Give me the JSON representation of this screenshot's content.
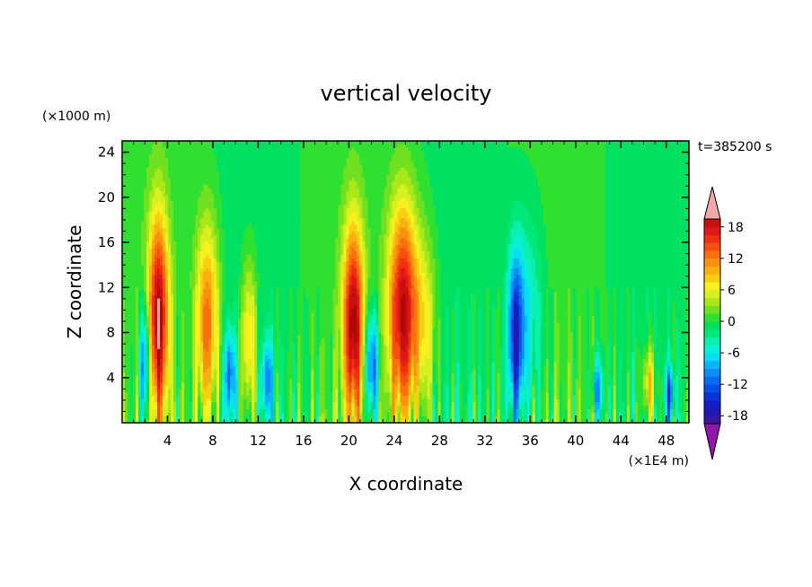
{
  "chart_data": {
    "type": "heatmap",
    "title": "vertical velocity",
    "xlabel": "X coordinate",
    "ylabel": "Z coordinate",
    "x_unit": "(×1E4 m)",
    "y_unit": "(×1000 m)",
    "time_label": "t=385200 s",
    "xlim": [
      0,
      50
    ],
    "ylim": [
      0,
      25
    ],
    "x_ticks": [
      4,
      8,
      12,
      16,
      20,
      24,
      28,
      32,
      36,
      40,
      44,
      48
    ],
    "y_ticks": [
      4,
      8,
      12,
      16,
      20,
      24
    ],
    "colorbar": {
      "levels": [
        -21,
        -19.5,
        -18,
        -16.5,
        -15,
        -13.5,
        -12,
        -10.5,
        -9,
        -7.5,
        -6,
        -4.5,
        -3,
        -1.5,
        0,
        1.5,
        3,
        4.5,
        6,
        7.5,
        9,
        10.5,
        12,
        13.5,
        15,
        16.5,
        18,
        19.5,
        21
      ],
      "tick_labels": [
        -18,
        -12,
        -6,
        0,
        6,
        12,
        18
      ],
      "colors": [
        "#4b0f8c",
        "#3a159f",
        "#2318b0",
        "#1120c4",
        "#0a34d8",
        "#0a4ee8",
        "#0a6af0",
        "#0a8ef5",
        "#0ab4f6",
        "#0adcf2",
        "#0af0d8",
        "#0af0b0",
        "#00e87a",
        "#00e060",
        "#30e030",
        "#70e020",
        "#a8e818",
        "#d8f020",
        "#f8f020",
        "#f8d010",
        "#f8b010",
        "#f89010",
        "#f87010",
        "#f84e10",
        "#f03010",
        "#e01818",
        "#c81010",
        "#b00808"
      ],
      "under_color": "#9018a8",
      "over_color": "#f0a8a8"
    },
    "features": [
      {
        "x": 3.2,
        "peak": 20,
        "top": 22,
        "width": 0.9,
        "sign": 1
      },
      {
        "x": 2.0,
        "peak": -12,
        "top": 13,
        "width": 0.5,
        "sign": -1
      },
      {
        "x": 7.5,
        "peak": 13,
        "top": 21,
        "width": 1.0,
        "sign": 1
      },
      {
        "x": 9.5,
        "peak": -11,
        "top": 10,
        "width": 0.5,
        "sign": -1
      },
      {
        "x": 11.2,
        "peak": 9,
        "top": 17,
        "width": 0.7,
        "sign": 1
      },
      {
        "x": 12.8,
        "peak": -10,
        "top": 9,
        "width": 0.5,
        "sign": -1
      },
      {
        "x": 20.4,
        "peak": 20,
        "top": 21,
        "width": 0.9,
        "sign": 1
      },
      {
        "x": 22.0,
        "peak": -13,
        "top": 12,
        "width": 0.6,
        "sign": -1
      },
      {
        "x": 24.8,
        "peak": 20,
        "top": 23,
        "width": 1.3,
        "sign": 1
      },
      {
        "x": 26.8,
        "peak": 6,
        "top": 20,
        "width": 1.0,
        "sign": 1
      },
      {
        "x": 34.7,
        "peak": -14,
        "top": 18,
        "width": 0.7,
        "sign": -1
      },
      {
        "x": 35.8,
        "peak": -6,
        "top": 22,
        "width": 1.4,
        "sign": -1
      },
      {
        "x": 42.0,
        "peak": -9,
        "top": 7,
        "width": 0.5,
        "sign": -1
      },
      {
        "x": 46.5,
        "peak": 9,
        "top": 8,
        "width": 0.6,
        "sign": 1
      },
      {
        "x": 48.3,
        "peak": -11,
        "top": 6,
        "width": 0.4,
        "sign": -1
      }
    ]
  }
}
